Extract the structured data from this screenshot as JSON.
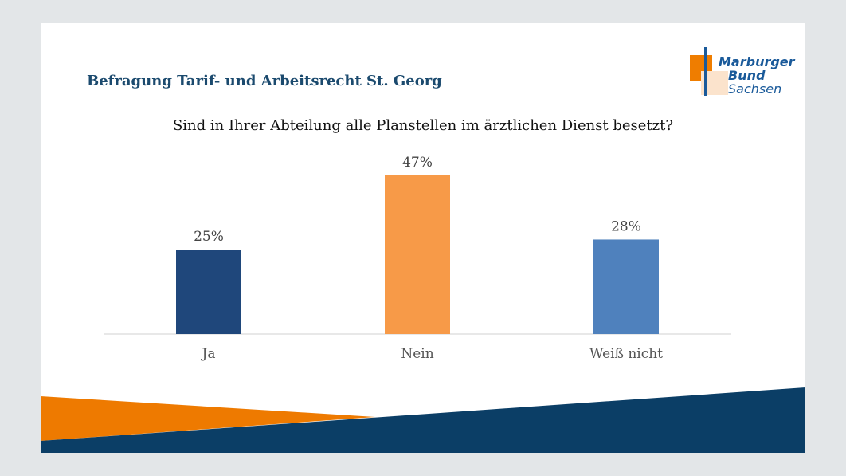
{
  "header": {
    "title": "Befragung Tarif- und Arbeitsrecht St. Georg",
    "logo": {
      "line1": "Marburger",
      "line2": "Bund",
      "line3": "Sachsen"
    }
  },
  "colors": {
    "orange": "#ee7a00",
    "navy": "#0b3e66"
  },
  "chart_data": {
    "type": "bar",
    "title": "Sind in Ihrer Abteilung alle Planstellen im ärztlichen Dienst besetzt?",
    "categories": [
      "Ja",
      "Nein",
      "Weiß nicht"
    ],
    "values": [
      25,
      47,
      28
    ],
    "labels": [
      "25%",
      "47%",
      "28%"
    ],
    "colors": [
      "#1f477b",
      "#f79a48",
      "#4f81bd"
    ],
    "grid": false,
    "legend": "none"
  }
}
